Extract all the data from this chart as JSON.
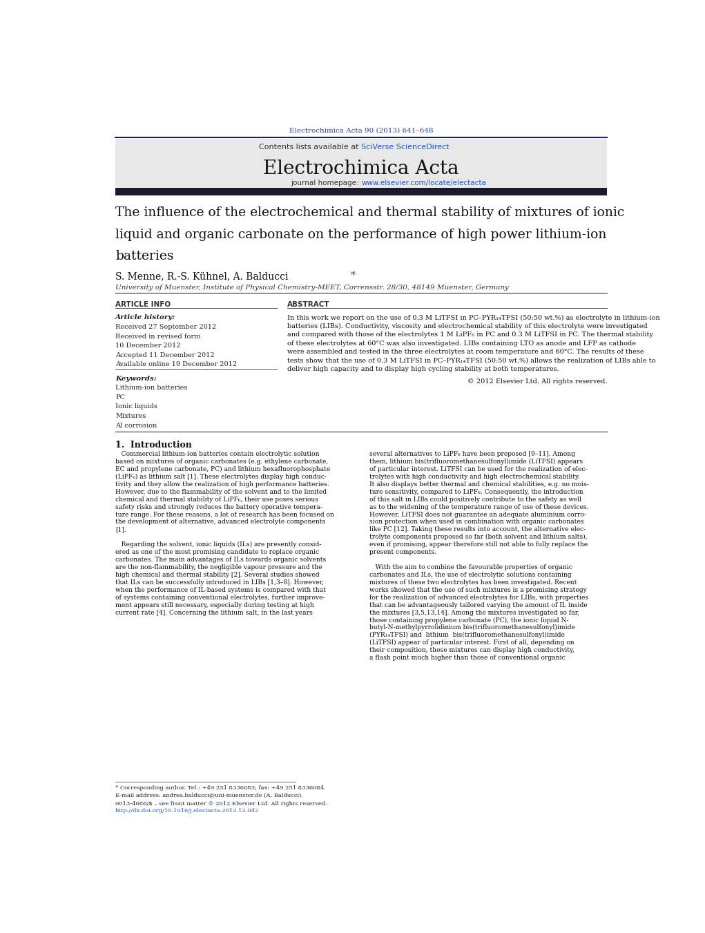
{
  "page_width": 10.21,
  "page_height": 13.51,
  "bg_color": "#ffffff",
  "journal_ref": "Electrochimica Acta 90 (2013) 641–648",
  "journal_ref_color": "#2244aa",
  "header_bg": "#e8e8e8",
  "header_text_plain": "Contents lists available at ",
  "header_sciverse": "SciVerse ScienceDirect",
  "journal_name": "Electrochimica Acta",
  "journal_homepage_plain": "journal homepage: ",
  "journal_homepage_url": "www.elsevier.com/locate/electacta",
  "dark_bar_color": "#1a1a2e",
  "article_title_line1": "The influence of the electrochemical and thermal stability of mixtures of ionic",
  "article_title_line2": "liquid and organic carbonate on the performance of high power lithium-ion",
  "article_title_line3": "batteries",
  "authors_plain": "S. Menne, R.-S. Kühnel, A. Balducci",
  "affiliation": "University of Muenster, Institute of Physical Chemistry-MEET, Corrensstr. 28/30, 48149 Muenster, Germany",
  "article_info_label": "ARTICLE INFO",
  "abstract_label": "ABSTRACT",
  "article_history_label": "Article history:",
  "history_items": [
    "Received 27 September 2012",
    "Received in revised form",
    "10 December 2012",
    "Accepted 11 December 2012",
    "Available online 19 December 2012"
  ],
  "keywords_label": "Keywords:",
  "keywords": [
    "Lithium-ion batteries",
    "PC",
    "Ionic liquids",
    "Mixtures",
    "Al corrosion"
  ],
  "abstract_lines": [
    "In this work we report on the use of 0.3 M LiTFSI in PC–PYR₁₄TFSI (50:50 wt.%) as electrolyte in lithium-ion",
    "batteries (LIBs). Conductivity, viscosity and electrochemical stability of this electrolyte were investigated",
    "and compared with those of the electrolytes 1 M LiPF₆ in PC and 0.3 M LiTFSI in PC. The thermal stability",
    "of these electrolytes at 60°C was also investigated. LIBs containing LTO as anode and LFP as cathode",
    "were assembled and tested in the three electrolytes at room temperature and 60°C. The results of these",
    "tests show that the use of 0.3 M LiTFSI in PC–PYR₁₄TFSI (50:50 wt.%) allows the realization of LIBs able to",
    "deliver high capacity and to display high cycling stability at both temperatures."
  ],
  "copyright": "© 2012 Elsevier Ltd. All rights reserved.",
  "intro_title": "1.  Introduction",
  "intro_col1_lines": [
    "   Commercial lithium-ion batteries contain electrolytic solution",
    "based on mixtures of organic carbonates (e.g. ethylene carbonate,",
    "EC and propylene carbonate, PC) and lithium hexafluorophosphate",
    "(LiPF₆) as lithium salt [1]. These electrolytes display high conduc-",
    "tivity and they allow the realization of high performance batteries.",
    "However, due to the flammability of the solvent and to the limited",
    "chemical and thermal stability of LiPF₆, their use poses serious",
    "safety risks and strongly reduces the battery operative tempera-",
    "ture range. For these reasons, a lot of research has been focused on",
    "the development of alternative, advanced electrolyte components",
    "[1].",
    "",
    "   Regarding the solvent, ionic liquids (ILs) are presently consid-",
    "ered as one of the most promising candidate to replace organic",
    "carbonates. The main advantages of ILs towards organic solvents",
    "are the non-flammability, the negligible vapour pressure and the",
    "high chemical and thermal stability [2]. Several studies showed",
    "that ILs can be successfully introduced in LIBs [1,3–8]. However,",
    "when the performance of IL-based systems is compared with that",
    "of systems containing conventional electrolytes, further improve-",
    "ment appears still necessary, especially during testing at high",
    "current rate [4]. Concerning the lithium salt, in the last years"
  ],
  "intro_col2_lines": [
    "several alternatives to LiPF₆ have been proposed [9–11]. Among",
    "them, lithium bis(trifluoromethanesulfonyl)imide (LiTFSI) appears",
    "of particular interest. LiTFSI can be used for the realization of elec-",
    "trolytes with high conductivity and high electrochemical stability.",
    "It also displays better thermal and chemical stabilities, e.g. no mois-",
    "ture sensitivity, compared to LiPF₆. Consequently, the introduction",
    "of this salt in LIBs could positively contribute to the safety as well",
    "as to the widening of the temperature range of use of these devices.",
    "However, LiTFSI does not guarantee an adequate aluminium corro-",
    "sion protection when used in combination with organic carbonates",
    "like PC [12]. Taking these results into account, the alternative elec-",
    "trolyte components proposed so far (both solvent and lithium salts),",
    "even if promising, appear therefore still not able to fully replace the",
    "present components.",
    "",
    "   With the aim to combine the favourable properties of organic",
    "carbonates and ILs, the use of electrolytic solutions containing",
    "mixtures of these two electrolytes has been investigated. Recent",
    "works showed that the use of such mixtures is a promising strategy",
    "for the realization of advanced electrolytes for LIBs, with properties",
    "that can be advantageously tailored varying the amount of IL inside",
    "the mixtures [3,5,13,14]. Among the mixtures investigated so far,",
    "those containing propylene carbonate (PC), the ionic liquid N-",
    "butyl-N-methylpyrrolidinium bis(trifluoromethanesulfonyl)imide",
    "(PYR₁₄TFSI) and  lithium  bis(trifluoromethanesulfonyl)imide",
    "(LiTFSI) appear of particular interest. First of all, depending on",
    "their composition, these mixtures can display high conductivity,",
    "a flash point much higher than those of conventional organic"
  ],
  "footnote_star": "* Corresponding author. Tel.: +49 251 8336083; fax: +49 251 8336084.",
  "footnote_email": "E-mail address: andrea.balducci@uni-muenster.de (A. Balducci).",
  "footnote_issn": "0013-4686/$ – see front matter © 2012 Elsevier Ltd. All rights reserved.",
  "footnote_doi": "http://dx.doi.org/10.1016/j.electacta.2012.12.042"
}
